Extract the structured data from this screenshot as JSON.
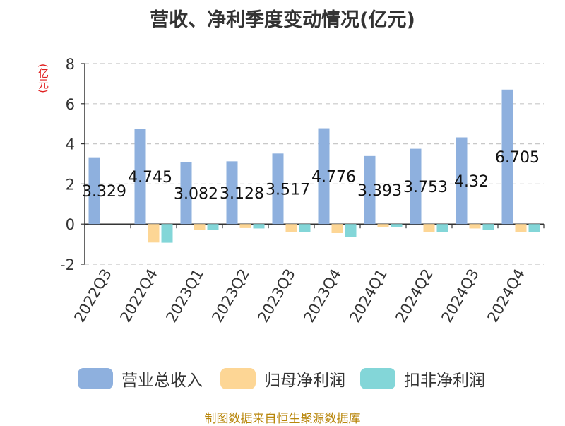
{
  "chart_data": {
    "type": "bar",
    "title": "营收、净利季度变动情况(亿元)",
    "ylabel": "(亿元)",
    "xlabel": "",
    "ylim": [
      -2,
      8
    ],
    "yticks": [
      -2,
      0,
      2,
      4,
      6,
      8
    ],
    "grid": true,
    "legend_position": "bottom",
    "categories": [
      "2022Q3",
      "2022Q4",
      "2023Q1",
      "2023Q2",
      "2023Q3",
      "2023Q4",
      "2024Q1",
      "2024Q2",
      "2024Q3",
      "2024Q4"
    ],
    "series": [
      {
        "name": "营业总收入",
        "color": "#8eb0de",
        "values": [
          3.329,
          4.745,
          3.082,
          3.128,
          3.517,
          4.776,
          3.393,
          3.753,
          4.32,
          6.705
        ],
        "labels": [
          "3.329",
          "4.745",
          "3.082",
          "3.128",
          "3.517",
          "4.776",
          "3.393",
          "3.753",
          "4.32",
          "6.705"
        ]
      },
      {
        "name": "归母净利润",
        "color": "#fdd695",
        "values": [
          0.0,
          -0.92,
          -0.28,
          -0.2,
          -0.38,
          -0.45,
          -0.15,
          -0.38,
          -0.22,
          -0.38
        ]
      },
      {
        "name": "扣非净利润",
        "color": "#83d6d8",
        "values": [
          0.0,
          -0.93,
          -0.28,
          -0.22,
          -0.38,
          -0.65,
          -0.15,
          -0.4,
          -0.28,
          -0.4
        ]
      }
    ]
  },
  "source": "制图数据来自恒生聚源数据库"
}
